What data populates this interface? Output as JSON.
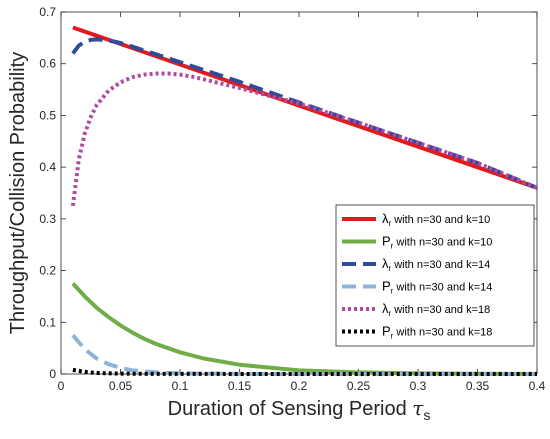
{
  "chart_data": {
    "type": "line",
    "title": "",
    "xlabel": "Duration of Sensing Period",
    "xlabel_symbol": "τ",
    "xlabel_subscript": "s",
    "ylabel": "Throughput/Collision Probability",
    "xlim": [
      0,
      0.4
    ],
    "ylim": [
      0,
      0.7
    ],
    "xticks": [
      "0",
      "0.05",
      "0.1",
      "0.15",
      "0.2",
      "0.25",
      "0.3",
      "0.35",
      "0.4"
    ],
    "yticks": [
      "0",
      "0.1",
      "0.2",
      "0.3",
      "0.4",
      "0.5",
      "0.6",
      "0.7"
    ],
    "grid": false,
    "legend_position": "bottom-right",
    "series": [
      {
        "name": "λr with n=30 and k=10",
        "legend_symbol": "λ",
        "legend_sub": "r",
        "legend_rest": " with n=30 and k=10",
        "color": "#e31a1c",
        "style": "solid",
        "x": [
          0.01,
          0.4
        ],
        "y": [
          0.67,
          0.36
        ]
      },
      {
        "name": "Pr with n=30 and k=10",
        "legend_symbol": "P",
        "legend_sub": "r",
        "legend_rest": " with n=30 and k=10",
        "color": "#70ad47",
        "style": "solid",
        "x": [
          0.01,
          0.02,
          0.03,
          0.04,
          0.05,
          0.06,
          0.07,
          0.08,
          0.1,
          0.12,
          0.15,
          0.2,
          0.25,
          0.3,
          0.35,
          0.4
        ],
        "y": [
          0.175,
          0.15,
          0.128,
          0.11,
          0.094,
          0.08,
          0.068,
          0.058,
          0.042,
          0.03,
          0.018,
          0.007,
          0.003,
          0.0012,
          0.0004,
          0.0001
        ]
      },
      {
        "name": "λr with n=30 and k=14",
        "legend_symbol": "λ",
        "legend_sub": "r",
        "legend_rest": " with n=30 and k=14",
        "color": "#2f4b9c",
        "style": "dashed",
        "x": [
          0.01,
          0.015,
          0.02,
          0.025,
          0.03,
          0.04,
          0.05,
          0.06,
          0.08,
          0.1,
          0.15,
          0.2,
          0.25,
          0.3,
          0.35,
          0.4
        ],
        "y": [
          0.62,
          0.635,
          0.643,
          0.646,
          0.647,
          0.645,
          0.64,
          0.633,
          0.618,
          0.603,
          0.565,
          0.525,
          0.486,
          0.447,
          0.408,
          0.36
        ]
      },
      {
        "name": "Pr with n=30 and k=14",
        "legend_symbol": "P",
        "legend_sub": "r",
        "legend_rest": " with n=30 and k=14",
        "color": "#8fb4dc",
        "style": "dashed",
        "x": [
          0.01,
          0.02,
          0.03,
          0.04,
          0.05,
          0.06,
          0.08,
          0.1,
          0.15,
          0.2,
          0.3,
          0.4
        ],
        "y": [
          0.075,
          0.048,
          0.03,
          0.019,
          0.012,
          0.007,
          0.003,
          0.0012,
          0.0002,
          0.0,
          0.0,
          0.0
        ]
      },
      {
        "name": "λr with n=30 and k=18",
        "legend_symbol": "λ",
        "legend_sub": "r",
        "legend_rest": " with n=30 and k=18",
        "color": "#b04aa0",
        "style": "dotted",
        "x": [
          0.01,
          0.015,
          0.02,
          0.025,
          0.03,
          0.04,
          0.05,
          0.06,
          0.07,
          0.08,
          0.09,
          0.1,
          0.11,
          0.12,
          0.13,
          0.15,
          0.17,
          0.2,
          0.25,
          0.3,
          0.35,
          0.4
        ],
        "y": [
          0.325,
          0.415,
          0.465,
          0.497,
          0.52,
          0.548,
          0.564,
          0.574,
          0.579,
          0.581,
          0.581,
          0.579,
          0.575,
          0.57,
          0.564,
          0.553,
          0.541,
          0.523,
          0.486,
          0.447,
          0.408,
          0.36
        ]
      },
      {
        "name": "Pr with n=30 and k=18",
        "legend_symbol": "P",
        "legend_sub": "r",
        "legend_rest": " with n=30 and k=18",
        "color": "#000000",
        "style": "dotted",
        "x": [
          0.01,
          0.02,
          0.03,
          0.05,
          0.08,
          0.1,
          0.2,
          0.3,
          0.4
        ],
        "y": [
          0.008,
          0.004,
          0.002,
          0.0007,
          0.0002,
          0.0001,
          0.0,
          0.0,
          0.0
        ]
      }
    ]
  }
}
